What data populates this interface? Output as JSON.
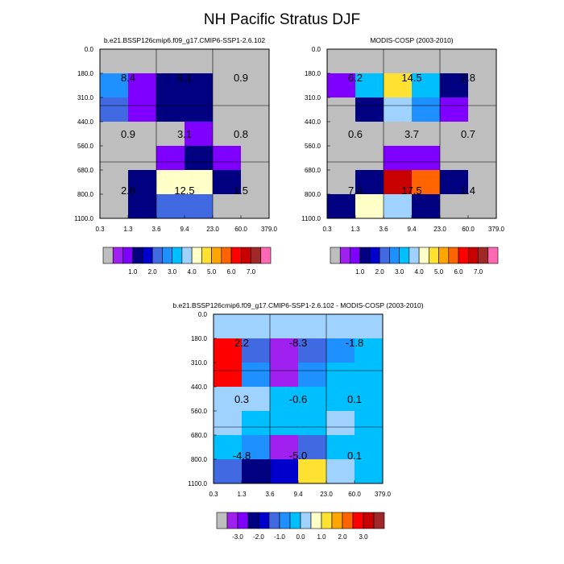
{
  "chart_data": {
    "type": "heatmap",
    "title": "NH Pacific Stratus DJF",
    "x_tick_labels": [
      "0.3",
      "1.3",
      "3.6",
      "9.4",
      "23.0",
      "60.0",
      "379.0"
    ],
    "y_tick_labels": [
      "0.0",
      "180.0",
      "310.0",
      "440.0",
      "560.0",
      "680.0",
      "800.0",
      "1100.0"
    ],
    "panels": [
      {
        "title": "b.e21.BSSP126cmip6.f09_g17.CMIP6-SSP1-2.6.102",
        "values": [
          [
            0.0,
            0.0,
            0.0,
            0.0,
            0.0,
            0.0
          ],
          [
            2.7,
            1.0,
            1.3,
            1.3,
            0.0,
            0.0
          ],
          [
            2.3,
            1.0,
            1.3,
            1.3,
            0.0,
            0.0
          ],
          [
            0.0,
            0.0,
            0.0,
            1.0,
            0.0,
            0.0
          ],
          [
            0.0,
            0.0,
            1.0,
            1.3,
            1.0,
            0.0
          ],
          [
            0.0,
            1.3,
            4.3,
            4.3,
            1.3,
            0.0
          ],
          [
            0.0,
            1.3,
            2.3,
            2.3,
            0.0,
            0.0
          ]
        ],
        "box_labels": [
          "8.4",
          "6.1",
          "0.9",
          "0.9",
          "3.1",
          "0.8",
          "2.6",
          "12.5",
          "1.5"
        ]
      },
      {
        "title": "MODIS-COSP (2003-2010)",
        "values": [
          [
            0.0,
            0.0,
            0.0,
            0.0,
            0.0,
            0.0
          ],
          [
            1.0,
            3.3,
            4.8,
            3.3,
            1.3,
            0.0
          ],
          [
            0.0,
            1.3,
            3.8,
            2.7,
            1.0,
            0.0
          ],
          [
            0.0,
            0.0,
            0.0,
            0.0,
            0.0,
            0.0
          ],
          [
            0.0,
            0.0,
            1.0,
            1.0,
            0.0,
            0.0
          ],
          [
            0.0,
            1.3,
            6.7,
            5.7,
            1.3,
            0.0
          ],
          [
            1.3,
            4.3,
            3.8,
            1.3,
            0.0,
            0.0
          ]
        ],
        "box_labels": [
          "6.2",
          "14.5",
          "2.8",
          "0.6",
          "3.7",
          "0.7",
          "7.4",
          "17.5",
          "1.4"
        ]
      },
      {
        "title": "b.e21.BSSP126cmip6.f09_g17.CMIP6-SSP1-2.6.102 - MODIS-COSP (2003-2010)",
        "values": [
          [
            0.3,
            0.3,
            0.1,
            0.1,
            0.1,
            0.1
          ],
          [
            2.8,
            -1.3,
            -3.3,
            -1.3,
            -0.8,
            -0.3
          ],
          [
            2.8,
            -0.8,
            -3.3,
            -0.8,
            -0.3,
            -0.3
          ],
          [
            0.3,
            0.3,
            -0.3,
            -0.3,
            -0.3,
            -0.3
          ],
          [
            0.3,
            -0.3,
            -0.3,
            -0.3,
            0.3,
            -0.3
          ],
          [
            -0.3,
            -0.8,
            -3.3,
            -1.3,
            -0.3,
            -0.3
          ],
          [
            -1.3,
            -2.3,
            -1.8,
            1.3,
            0.3,
            -0.3
          ]
        ],
        "box_labels": [
          "2.2",
          "-8.3",
          "-1.8",
          "0.3",
          "-0.6",
          "0.1",
          "-4.8",
          "-5.0",
          "0.1"
        ]
      }
    ],
    "colorbars": [
      {
        "levels": [
          0.0,
          0.5,
          1.0,
          1.5,
          2.0,
          2.5,
          3.0,
          3.5,
          4.0,
          4.5,
          5.0,
          5.5,
          6.0,
          6.5,
          7.0,
          7.5
        ],
        "labels": [
          "1.0",
          "2.0",
          "3.0",
          "4.0",
          "5.0",
          "6.0",
          "7.0"
        ],
        "label_levels": [
          1.0,
          2.0,
          3.0,
          4.0,
          5.0,
          6.0,
          7.0
        ]
      },
      {
        "levels": [
          -3.5,
          -3.0,
          -2.5,
          -2.0,
          -1.5,
          -1.0,
          -0.5,
          0.0,
          0.5,
          1.0,
          1.5,
          2.0,
          2.5,
          3.0,
          3.5
        ],
        "labels": [
          "-3.0",
          "-2.0",
          "-1.0",
          "0.0",
          "1.0",
          "2.0",
          "3.0"
        ],
        "label_levels": [
          -3.0,
          -2.0,
          -1.0,
          0.0,
          1.0,
          2.0,
          3.0
        ]
      }
    ],
    "colormap": [
      "#bebebe",
      "#a020f0",
      "#7f00ff",
      "#000080",
      "#0000cd",
      "#4169e1",
      "#1e90ff",
      "#00bfff",
      "#a0d2ff",
      "#ffffc8",
      "#ffe132",
      "#ffa500",
      "#ff6400",
      "#ff0000",
      "#c80000",
      "#a02828",
      "#ff69b4"
    ]
  }
}
